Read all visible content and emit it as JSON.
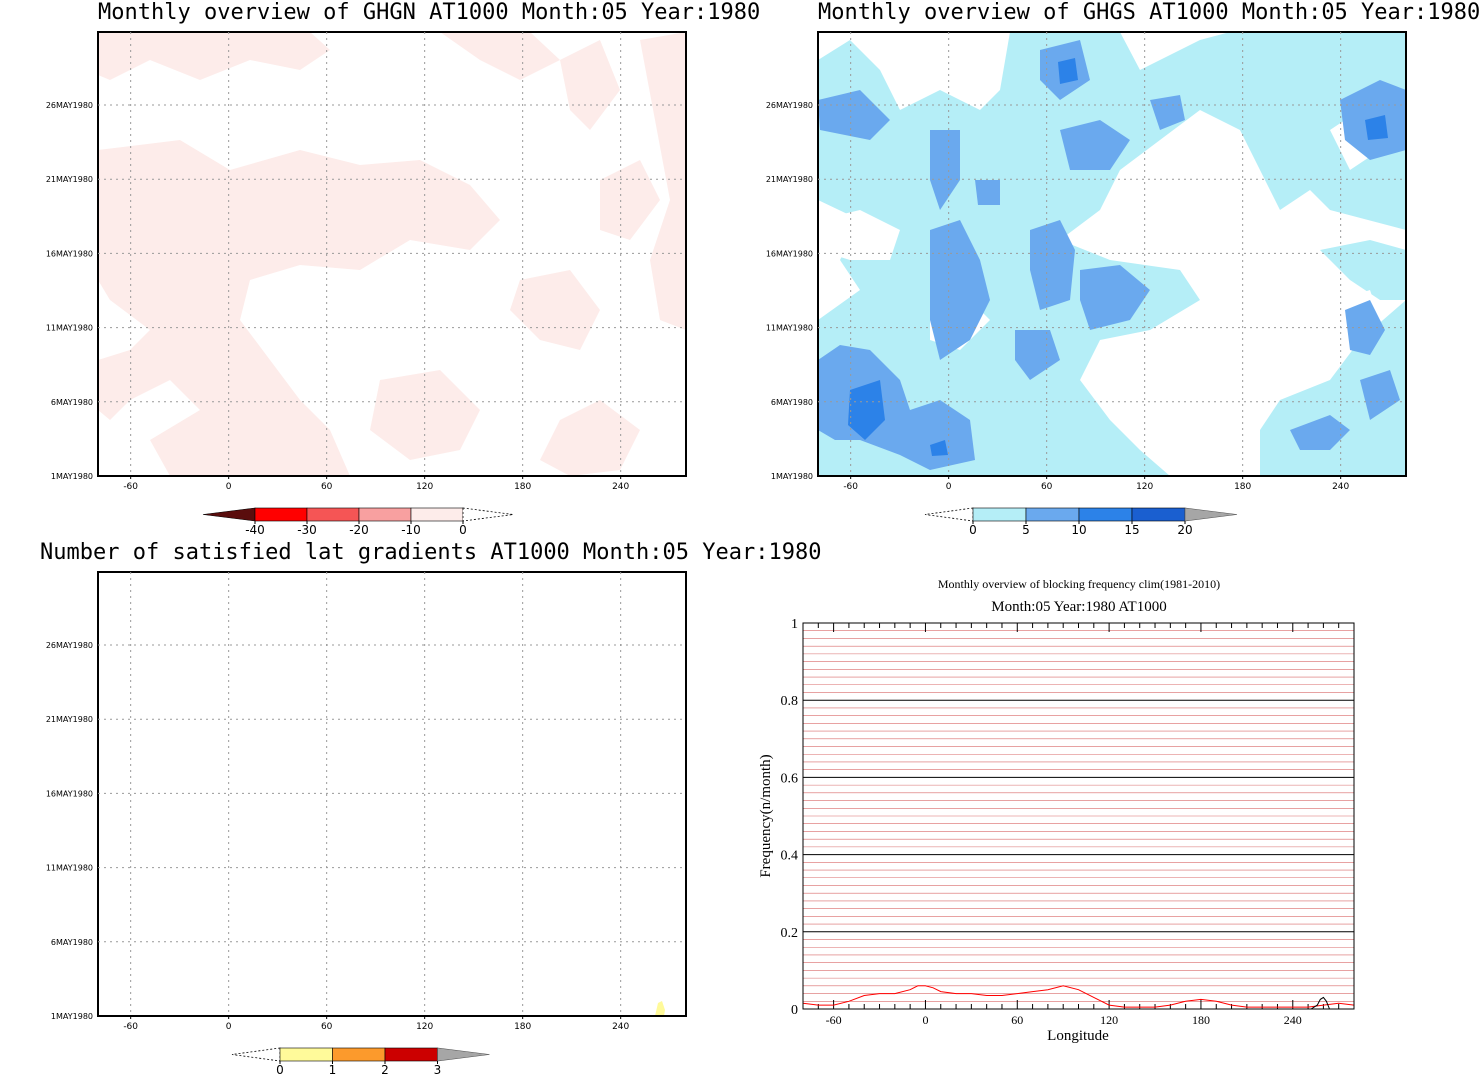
{
  "panels": [
    {
      "title": "Monthly overview of GHGN AT1000 Month:05 Year:1980",
      "x_ticks": [
        "-60",
        "0",
        "60",
        "120",
        "180",
        "240"
      ],
      "y_ticks": [
        "1MAY1980",
        "6MAY1980",
        "11MAY1980",
        "16MAY1980",
        "21MAY1980",
        "26MAY1980"
      ],
      "colorbar": {
        "labels": [
          "-40",
          "-30",
          "-20",
          "-10",
          "0"
        ],
        "colors": [
          "#5a0d0d",
          "#ff0000",
          "#f55555",
          "#f8a0a0",
          "#fdecea"
        ],
        "under_color": "#5a0d0d",
        "over_color": "#ffffff"
      }
    },
    {
      "title": "Monthly overview of GHGS AT1000 Month:05 Year:1980",
      "x_ticks": [
        "-60",
        "0",
        "60",
        "120",
        "180",
        "240"
      ],
      "y_ticks": [
        "1MAY1980",
        "6MAY1980",
        "11MAY1980",
        "16MAY1980",
        "21MAY1980",
        "26MAY1980"
      ],
      "colorbar": {
        "labels": [
          "0",
          "5",
          "10",
          "15",
          "20"
        ],
        "colors": [
          "#b5eef7",
          "#6aa9ee",
          "#2c82e8",
          "#1a5fd0"
        ],
        "under_color": "#ffffff",
        "over_color": "#a6a6a6"
      }
    },
    {
      "title": "Number of satisfied lat gradients AT1000 Month:05 Year:1980",
      "x_ticks": [
        "-60",
        "0",
        "60",
        "120",
        "180",
        "240"
      ],
      "y_ticks": [
        "1MAY1980",
        "6MAY1980",
        "11MAY1980",
        "16MAY1980",
        "21MAY1980",
        "26MAY1980"
      ],
      "colorbar": {
        "labels": [
          "0",
          "1",
          "2",
          "3"
        ],
        "colors": [
          "#fffa9a",
          "#fc9a2c",
          "#cc0000"
        ],
        "under_color": "#ffffff",
        "over_color": "#a6a6a6"
      }
    }
  ],
  "chart_data": [
    {
      "type": "heatmap",
      "title": "Monthly overview of GHGN AT1000 Month:05 Year:1980",
      "x_ticks": [
        -60,
        0,
        60,
        120,
        180,
        240
      ],
      "xlim": [
        -80,
        280
      ],
      "y_ticks": [
        "1MAY1980",
        "6MAY1980",
        "11MAY1980",
        "16MAY1980",
        "21MAY1980",
        "26MAY1980"
      ],
      "levels": [
        -40,
        -30,
        -20,
        -10,
        0
      ],
      "note_colors": "pale pink band covers values in (-10, 0); remainder white"
    },
    {
      "type": "heatmap",
      "title": "Monthly overview of GHGS AT1000 Month:05 Year:1980",
      "x_ticks": [
        -60,
        0,
        60,
        120,
        180,
        240
      ],
      "xlim": [
        -80,
        280
      ],
      "y_ticks": [
        "1MAY1980",
        "6MAY1980",
        "11MAY1980",
        "16MAY1980",
        "21MAY1980",
        "26MAY1980"
      ],
      "levels": [
        0,
        5,
        10,
        15,
        20
      ]
    },
    {
      "type": "heatmap",
      "title": "Number of satisfied lat gradients AT1000 Month:05 Year:1980",
      "x_ticks": [
        -60,
        0,
        60,
        120,
        180,
        240
      ],
      "xlim": [
        -80,
        280
      ],
      "y_ticks": [
        "1MAY1980",
        "6MAY1980",
        "11MAY1980",
        "16MAY1980",
        "21MAY1980",
        "26MAY1980"
      ],
      "levels": [
        0,
        1,
        2,
        3
      ]
    },
    {
      "type": "line",
      "title": "Monthly overview of blocking frequency clim(1981-2010)",
      "subtitle": "Month:05 Year:1980  AT1000",
      "xlabel": "Longitude",
      "ylabel": "Frequency(n/month)",
      "xlim": [
        -80,
        280
      ],
      "ylim": [
        0,
        1
      ],
      "x_ticks": [
        -60,
        0,
        60,
        120,
        180,
        240
      ],
      "y_ticks": [
        "0",
        "0.2",
        "0.4",
        "0.6",
        "0.8",
        "1"
      ],
      "grid": true,
      "series": [
        {
          "color": "#ff0000",
          "x": [
            -80,
            -70,
            -60,
            -50,
            -40,
            -30,
            -20,
            -10,
            -5,
            0,
            5,
            10,
            20,
            30,
            40,
            50,
            60,
            70,
            80,
            90,
            100,
            110,
            120,
            130,
            140,
            150,
            160,
            170,
            180,
            190,
            200,
            210,
            220,
            230,
            240,
            250,
            260,
            270,
            280
          ],
          "y": [
            0.015,
            0.01,
            0.01,
            0.02,
            0.035,
            0.04,
            0.04,
            0.05,
            0.06,
            0.06,
            0.055,
            0.045,
            0.04,
            0.04,
            0.035,
            0.035,
            0.04,
            0.045,
            0.05,
            0.06,
            0.05,
            0.03,
            0.01,
            0.005,
            0.005,
            0.005,
            0.01,
            0.02,
            0.025,
            0.02,
            0.01,
            0.005,
            0.005,
            0.005,
            0.005,
            0.005,
            0.01,
            0.015,
            0.01
          ]
        },
        {
          "color": "#000000",
          "x": [
            252,
            256,
            258,
            260,
            262,
            264
          ],
          "y": [
            0.0,
            0.01,
            0.025,
            0.03,
            0.02,
            0.0
          ]
        }
      ]
    }
  ]
}
